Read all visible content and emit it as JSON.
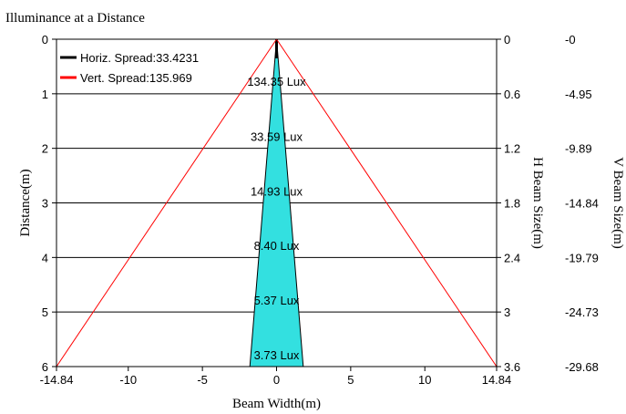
{
  "chart_data": {
    "type": "area",
    "title": "Illuminance at a Distance",
    "xlabel": "Beam Width(m)",
    "ylabel": "Distance(m)",
    "y2label": "H Beam Size(m)",
    "y3label": "V Beam Size(m)",
    "xlim": [
      -14.84,
      14.84
    ],
    "ylim": [
      0,
      6
    ],
    "x_ticks": [
      "-14.84",
      "-10",
      "-5",
      "0",
      "5",
      "10",
      "14.84"
    ],
    "y_ticks": [
      "0",
      "1",
      "2",
      "3",
      "4",
      "5",
      "6"
    ],
    "h_beam_ticks": [
      "0",
      "0.6",
      "1.2",
      "1.8",
      "2.4",
      "3",
      "3.6"
    ],
    "v_beam_ticks": [
      "-0",
      "-4.95",
      "-9.89",
      "-14.84",
      "-19.79",
      "-24.73",
      "-29.68"
    ],
    "grid": true,
    "legend_position": "top-left",
    "series": [
      {
        "name": "Horiz. Spread:33.4231",
        "color": "#000000",
        "distance": [
          0,
          6
        ],
        "half_width": [
          0,
          1.8
        ]
      },
      {
        "name": "Vert. Spread:135.969",
        "color": "#ff0000",
        "distance": [
          0,
          6
        ],
        "half_width": [
          0,
          14.84
        ]
      }
    ],
    "fill_color": "#33e0e0",
    "illuminance_labels": [
      {
        "distance": 0.77,
        "text": "134.35 Lux"
      },
      {
        "distance": 1.78,
        "text": "33.59 Lux"
      },
      {
        "distance": 2.78,
        "text": "14.93 Lux"
      },
      {
        "distance": 3.78,
        "text": "8.40 Lux"
      },
      {
        "distance": 4.78,
        "text": "5.37 Lux"
      },
      {
        "distance": 5.78,
        "text": "3.73 Lux"
      }
    ]
  }
}
